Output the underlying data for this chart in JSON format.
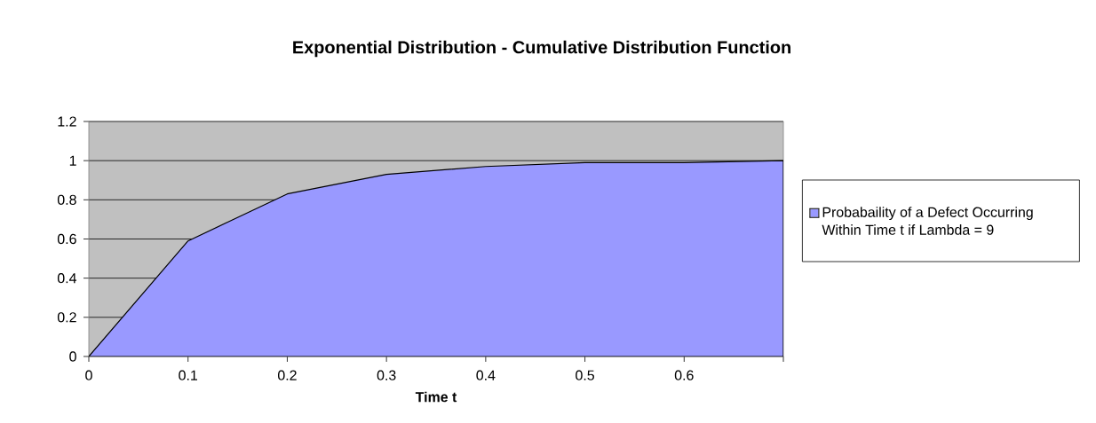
{
  "chart_data": {
    "type": "area",
    "title": "Exponential Distribution - Cumulative Distribution Function",
    "xlabel": "Time t",
    "categories": [
      "0",
      "0.1",
      "0.2",
      "0.3",
      "0.4",
      "0.5",
      "0.6",
      null
    ],
    "series": [
      {
        "name": "Probabaility of a Defect Occurring Within Time t if Lambda = 9",
        "color": "#9999ff",
        "values": [
          0,
          0.59,
          0.83,
          0.93,
          0.97,
          0.99,
          0.99,
          1.0
        ]
      }
    ],
    "ylim": [
      0,
      1.2
    ],
    "yticks": [
      0,
      0.2,
      0.4,
      0.6,
      0.8,
      1,
      1.2
    ],
    "grid": "y",
    "legend": "right"
  }
}
